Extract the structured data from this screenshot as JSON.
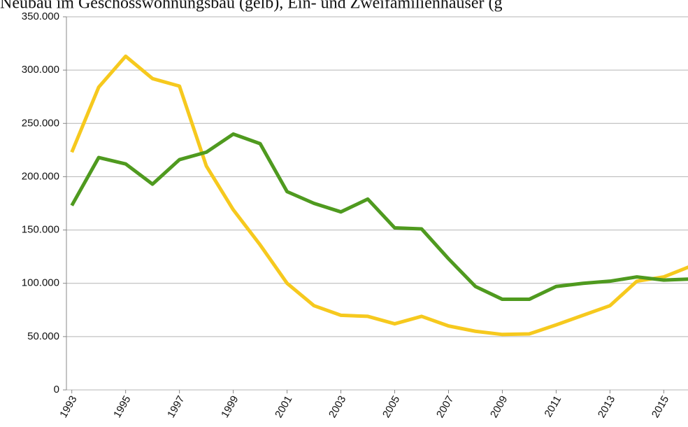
{
  "chart_data": {
    "type": "line",
    "title": "Neubau im Geschosswohnungsbau (gelb), Ein- und Zweifamilienhäuser (g",
    "x": [
      1993,
      1994,
      1995,
      1996,
      1997,
      1998,
      1999,
      2000,
      2001,
      2002,
      2003,
      2004,
      2005,
      2006,
      2007,
      2008,
      2009,
      2010,
      2011,
      2012,
      2013,
      2014,
      2015,
      2016
    ],
    "series": [
      {
        "color": "#f6c91e",
        "values": [
          223000,
          284000,
          313000,
          292000,
          285000,
          210000,
          169000,
          136000,
          100000,
          79000,
          70000,
          69000,
          62000,
          69000,
          60000,
          55000,
          52000,
          52500,
          61000,
          70000,
          79000,
          102000,
          106000,
          116000
        ]
      },
      {
        "color": "#4f9a1f",
        "values": [
          173000,
          218000,
          212000,
          193000,
          216000,
          223000,
          240000,
          231000,
          186000,
          175000,
          167000,
          179000,
          152000,
          151000,
          123000,
          97000,
          85000,
          85000,
          97000,
          100000,
          102000,
          106000,
          103000,
          104000
        ]
      }
    ],
    "xlim": [
      1992.8,
      2015.9
    ],
    "xticks": [
      1993,
      1995,
      1997,
      1999,
      2001,
      2003,
      2005,
      2007,
      2009,
      2011,
      2013,
      2015
    ],
    "ylim": [
      0,
      350000
    ],
    "yticks": [
      0,
      {
        "value": 50000,
        "label": "50.000"
      },
      {
        "value": 100000,
        "label": "100.000"
      },
      {
        "value": 150000,
        "label": "150.000"
      },
      {
        "value": 200000,
        "label": "200.000"
      },
      {
        "value": 250000,
        "label": "250.000"
      },
      {
        "value": 300000,
        "label": "300.000"
      },
      {
        "value": 350000,
        "label": "350.000"
      }
    ],
    "grid": true
  }
}
